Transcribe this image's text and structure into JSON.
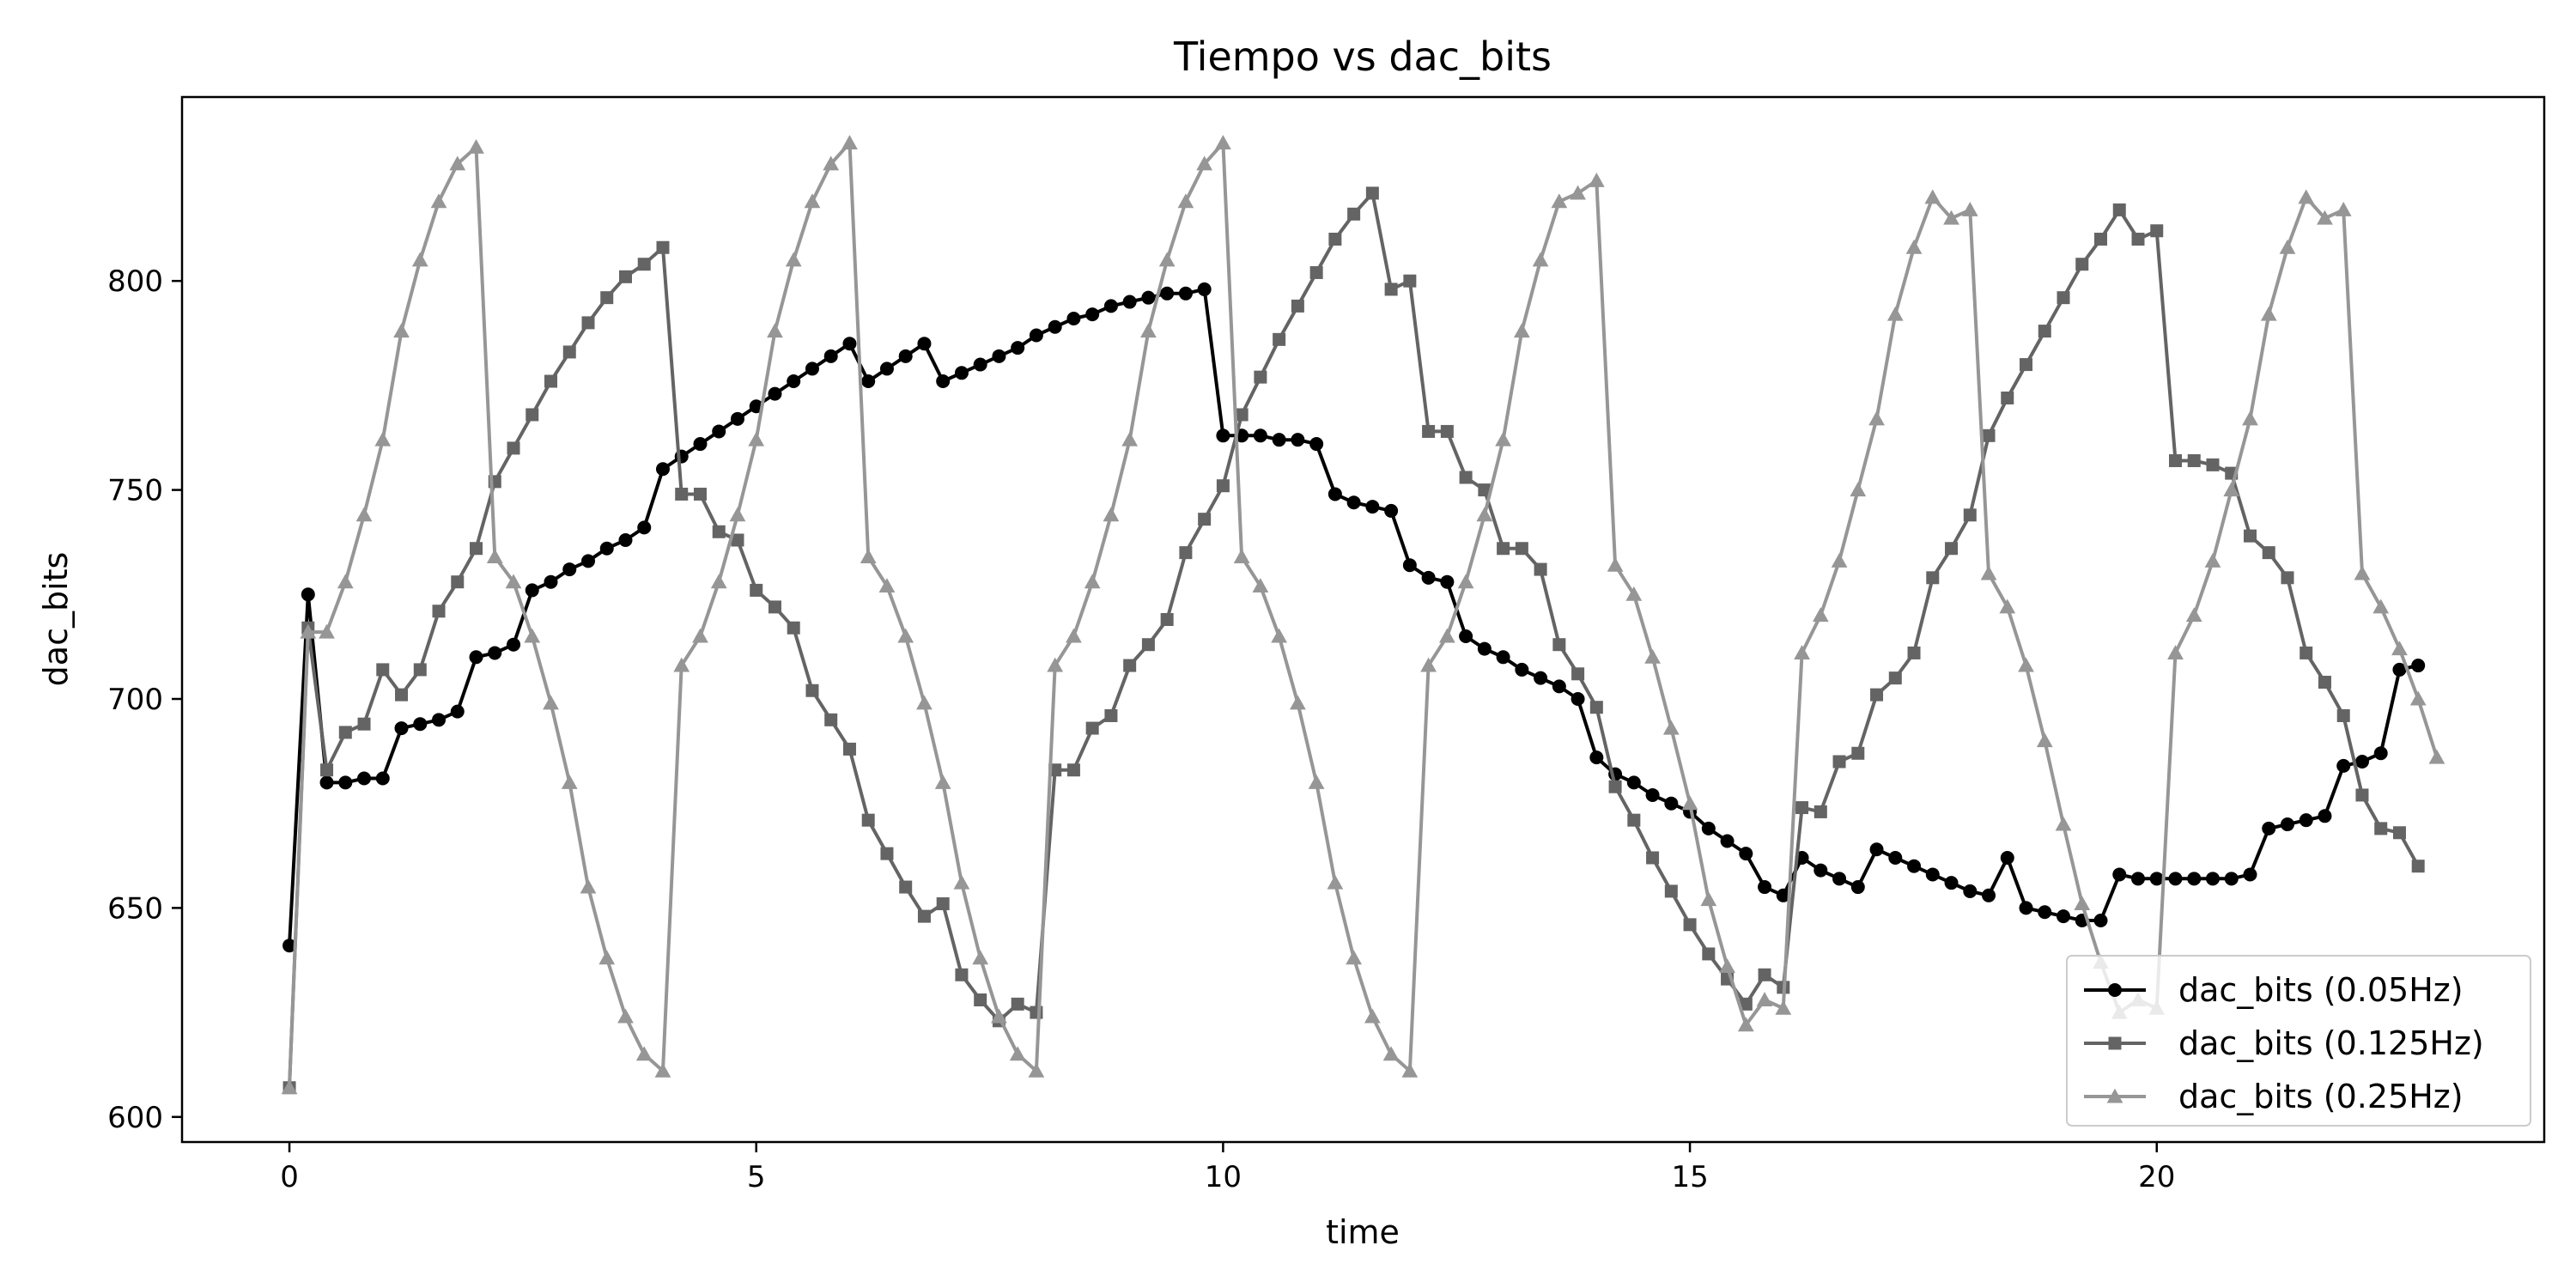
{
  "chart_data": {
    "type": "line",
    "title": "Tiempo vs dac_bits",
    "xlabel": "time",
    "ylabel": "dac_bits",
    "xlim": [
      -1.15,
      24.15
    ],
    "ylim": [
      594,
      844
    ],
    "xticks": [
      0,
      5,
      10,
      15,
      20
    ],
    "yticks": [
      600,
      650,
      700,
      750,
      800
    ],
    "grid": false,
    "legend_position": "lower-right",
    "series": [
      {
        "name": "dac_bits (0.05Hz)",
        "color": "#000000",
        "marker": "circle",
        "x": [
          0,
          0.2,
          0.4,
          0.6,
          0.8,
          1.0,
          1.2,
          1.4,
          1.6,
          1.8,
          2.0,
          2.2,
          2.4,
          2.6,
          2.8,
          3.0,
          3.2,
          3.4,
          3.6,
          3.8,
          4.0,
          4.2,
          4.4,
          4.6,
          4.8,
          5.0,
          5.2,
          5.4,
          5.6,
          5.8,
          6.0,
          6.2,
          6.4,
          6.6,
          6.8,
          7.0,
          7.2,
          7.4,
          7.6,
          7.8,
          8.0,
          8.2,
          8.4,
          8.6,
          8.8,
          9.0,
          9.2,
          9.4,
          9.6,
          9.8,
          10.0,
          10.2,
          10.4,
          10.6,
          10.8,
          11.0,
          11.2,
          11.4,
          11.6,
          11.8,
          12.0,
          12.2,
          12.4,
          12.6,
          12.8,
          13.0,
          13.2,
          13.4,
          13.6,
          13.8,
          14.0,
          14.2,
          14.4,
          14.6,
          14.8,
          15.0,
          15.2,
          15.4,
          15.6,
          15.8,
          16.0,
          16.2,
          16.4,
          16.6,
          16.8,
          17.0,
          17.2,
          17.4,
          17.6,
          17.8,
          18.0,
          18.2,
          18.4,
          18.6,
          18.8,
          19.0,
          19.2,
          19.4,
          19.6,
          19.8,
          20.0,
          20.2,
          20.4,
          20.6,
          20.8,
          21.0,
          21.2,
          21.4,
          21.6,
          21.8,
          22.0,
          22.2,
          22.4,
          22.6,
          22.8
        ],
        "y": [
          641,
          725,
          680,
          680,
          681,
          681,
          693,
          694,
          695,
          697,
          710,
          711,
          713,
          726,
          728,
          731,
          733,
          736,
          738,
          741,
          755,
          758,
          761,
          764,
          767,
          770,
          773,
          776,
          779,
          782,
          785,
          776,
          779,
          782,
          785,
          776,
          778,
          780,
          782,
          784,
          787,
          789,
          791,
          792,
          794,
          795,
          796,
          797,
          797,
          798,
          763,
          763,
          763,
          762,
          762,
          761,
          749,
          747,
          746,
          745,
          732,
          729,
          728,
          715,
          712,
          710,
          707,
          705,
          703,
          700,
          686,
          682,
          680,
          677,
          675,
          673,
          669,
          666,
          663,
          655,
          653,
          662,
          659,
          657,
          655,
          664,
          662,
          660,
          658,
          656,
          654,
          653,
          662,
          650,
          649,
          648,
          647,
          647,
          658,
          657,
          657,
          657,
          657,
          657,
          657,
          658,
          669,
          670,
          671,
          672,
          684,
          685,
          687,
          707,
          708
        ]
      },
      {
        "name": "dac_bits (0.125Hz)",
        "color": "#646464",
        "marker": "square",
        "x": [
          0,
          0.2,
          0.4,
          0.6,
          0.8,
          1.0,
          1.2,
          1.4,
          1.6,
          1.8,
          2.0,
          2.2,
          2.4,
          2.6,
          2.8,
          3.0,
          3.2,
          3.4,
          3.6,
          3.8,
          4.0,
          4.2,
          4.4,
          4.6,
          4.8,
          5.0,
          5.2,
          5.4,
          5.6,
          5.8,
          6.0,
          6.2,
          6.4,
          6.6,
          6.8,
          7.0,
          7.2,
          7.4,
          7.6,
          7.8,
          8.0,
          8.2,
          8.4,
          8.6,
          8.8,
          9.0,
          9.2,
          9.4,
          9.6,
          9.8,
          10.0,
          10.2,
          10.4,
          10.6,
          10.8,
          11.0,
          11.2,
          11.4,
          11.6,
          11.8,
          12.0,
          12.2,
          12.4,
          12.6,
          12.8,
          13.0,
          13.2,
          13.4,
          13.6,
          13.8,
          14.0,
          14.2,
          14.4,
          14.6,
          14.8,
          15.0,
          15.2,
          15.4,
          15.6,
          15.8,
          16.0,
          16.2,
          16.4,
          16.6,
          16.8,
          17.0,
          17.2,
          17.4,
          17.6,
          17.8,
          18.0,
          18.2,
          18.4,
          18.6,
          18.8,
          19.0,
          19.2,
          19.4,
          19.6,
          19.8,
          20.0,
          20.2,
          20.4,
          20.6,
          20.8,
          21.0,
          21.2,
          21.4,
          21.6,
          21.8,
          22.0,
          22.2,
          22.4,
          22.6,
          22.8
        ],
        "y": [
          607,
          717,
          683,
          692,
          694,
          707,
          701,
          707,
          721,
          728,
          736,
          752,
          760,
          768,
          776,
          783,
          790,
          796,
          801,
          804,
          808,
          749,
          749,
          740,
          738,
          726,
          722,
          717,
          702,
          695,
          688,
          671,
          663,
          655,
          648,
          651,
          634,
          628,
          623,
          627,
          625,
          683,
          683,
          693,
          696,
          708,
          713,
          719,
          735,
          743,
          751,
          768,
          777,
          786,
          794,
          802,
          810,
          816,
          821,
          798,
          800,
          764,
          764,
          753,
          750,
          736,
          736,
          731,
          713,
          706,
          698,
          679,
          671,
          662,
          654,
          646,
          639,
          633,
          627,
          634,
          631,
          674,
          673,
          685,
          687,
          701,
          705,
          711,
          729,
          736,
          744,
          763,
          772,
          780,
          788,
          796,
          804,
          810,
          817,
          810,
          812,
          757,
          757,
          756,
          754,
          739,
          735,
          729,
          711,
          704,
          696,
          677,
          669,
          668,
          660
        ]
      },
      {
        "name": "dac_bits (0.25Hz)",
        "color": "#969696",
        "marker": "triangle",
        "x": [
          0,
          0.2,
          0.4,
          0.6,
          0.8,
          1.0,
          1.2,
          1.4,
          1.6,
          1.8,
          2.0,
          2.2,
          2.4,
          2.6,
          2.8,
          3.0,
          3.2,
          3.4,
          3.6,
          3.8,
          4.0,
          4.2,
          4.4,
          4.6,
          4.8,
          5.0,
          5.2,
          5.4,
          5.6,
          5.8,
          6.0,
          6.2,
          6.4,
          6.6,
          6.8,
          7.0,
          7.2,
          7.4,
          7.6,
          7.8,
          8.0,
          8.2,
          8.4,
          8.6,
          8.8,
          9.0,
          9.2,
          9.4,
          9.6,
          9.8,
          10.0,
          10.2,
          10.4,
          10.6,
          10.8,
          11.0,
          11.2,
          11.4,
          11.6,
          11.8,
          12.0,
          12.2,
          12.4,
          12.6,
          12.8,
          13.0,
          13.2,
          13.4,
          13.6,
          13.8,
          14.0,
          14.2,
          14.4,
          14.6,
          14.8,
          15.0,
          15.2,
          15.4,
          15.6,
          15.8,
          16.0,
          16.2,
          16.4,
          16.6,
          16.8,
          17.0,
          17.2,
          17.4,
          17.6,
          17.8,
          18.0,
          18.2,
          18.4,
          18.6,
          18.8,
          19.0,
          19.2,
          19.4,
          19.6,
          19.8,
          20.0,
          20.2,
          20.4,
          20.6,
          20.8,
          21.0,
          21.2,
          21.4,
          21.6,
          21.8,
          22.0,
          22.2,
          22.4,
          22.6,
          22.8,
          23.0
        ],
        "y": [
          607,
          716,
          716,
          728,
          744,
          762,
          788,
          805,
          819,
          828,
          832,
          734,
          728,
          715,
          699,
          680,
          655,
          638,
          624,
          615,
          611,
          708,
          715,
          728,
          744,
          762,
          788,
          805,
          819,
          828,
          833,
          734,
          727,
          715,
          699,
          680,
          656,
          638,
          624,
          615,
          611,
          708,
          715,
          728,
          744,
          762,
          788,
          805,
          819,
          828,
          833,
          734,
          727,
          715,
          699,
          680,
          656,
          638,
          624,
          615,
          611,
          708,
          715,
          728,
          744,
          762,
          788,
          805,
          819,
          821,
          824,
          732,
          725,
          710,
          693,
          675,
          652,
          636,
          622,
          628,
          626,
          711,
          720,
          733,
          750,
          767,
          792,
          808,
          820,
          815,
          817,
          730,
          722,
          708,
          690,
          670,
          651,
          637,
          625,
          628,
          626,
          711,
          720,
          733,
          750,
          767,
          792,
          808,
          820,
          815,
          817,
          730,
          722,
          712,
          700,
          686
        ]
      }
    ]
  }
}
